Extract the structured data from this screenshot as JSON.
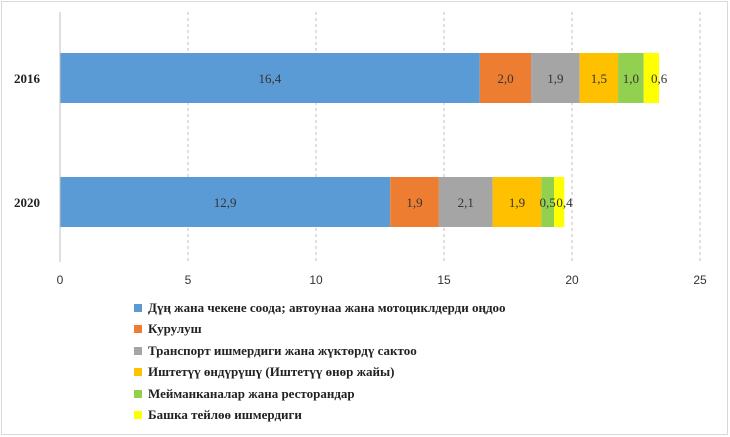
{
  "chart_data": {
    "type": "bar",
    "orientation": "horizontal",
    "stacked": true,
    "categories": [
      "2016",
      "2020"
    ],
    "series": [
      {
        "name": "Дүң жана чекене соода; автоунаа жана мотоциклдерди оңдоо",
        "color": "#5b9bd5",
        "values": [
          16.4,
          12.9
        ],
        "labels": [
          "16,4",
          "12,9"
        ]
      },
      {
        "name": "Курулуш",
        "color": "#ed7d31",
        "values": [
          2.0,
          1.9
        ],
        "labels": [
          "2,0",
          "1,9"
        ]
      },
      {
        "name": "Транспорт ишмердиги жана жүктөрдү сактоо",
        "color": "#a5a5a5",
        "values": [
          1.9,
          2.1
        ],
        "labels": [
          "1,9",
          "2,1"
        ]
      },
      {
        "name": "Иштетүү өндүрүшү (Иштетүү өнөр жайы)",
        "color": "#ffc000",
        "values": [
          1.5,
          1.9
        ],
        "labels": [
          "1,5",
          "1,9"
        ]
      },
      {
        "name": "Мейманканалар жана ресторандар",
        "color": "#92d050",
        "values": [
          1.0,
          0.5
        ],
        "labels": [
          "1,0",
          "0,5"
        ]
      },
      {
        "name": "Башка тейлөө ишмердиги",
        "color": "#ffff00",
        "values": [
          0.6,
          0.4
        ],
        "labels": [
          "0,6",
          "0,4"
        ]
      }
    ],
    "xlim": [
      0,
      25
    ],
    "xticks": [
      "0",
      "5",
      "10",
      "15",
      "20",
      "25"
    ],
    "grid": true,
    "legend": "bottom"
  }
}
